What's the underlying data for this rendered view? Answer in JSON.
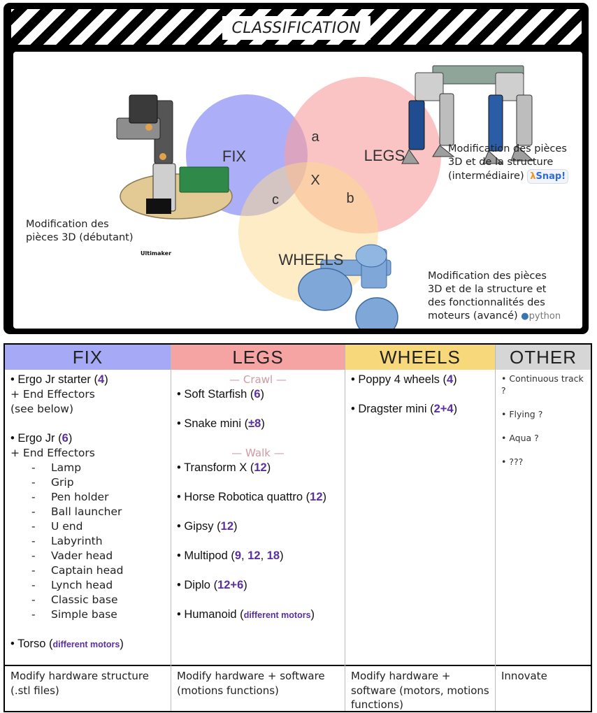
{
  "header": {
    "title": "CLASSIFICATION"
  },
  "venn": {
    "labels": {
      "fix": "FIX",
      "legs": "LEGS",
      "wheels": "WHEELS",
      "a": "a",
      "b": "b",
      "c": "c",
      "x": "X"
    },
    "colors": {
      "fix": "#8e8ff5",
      "legs": "#f7a0a0",
      "wheels": "#fbd98c"
    }
  },
  "captions": {
    "beginner": {
      "line1": "Modification des",
      "line2": "pièces 3D (débutant)",
      "logo": "Ultimaker"
    },
    "intermediate": {
      "line1": "Modification des pièces",
      "line2": "3D et de la structure",
      "line3": "(intermédiaire)",
      "logo": "Snap!"
    },
    "advanced": {
      "line1": "Modification des pièces",
      "line2": "3D et de la structure et",
      "line3": "des fonctionnalités des",
      "line4": "moteurs (avancé)",
      "logo": "python"
    }
  },
  "table": {
    "headers": {
      "fix": "FIX",
      "legs": "LEGS",
      "wheels": "WHEELS",
      "other": "OTHER"
    },
    "colors": {
      "fix": "#a5a9f6",
      "legs": "#f6a3a3",
      "wheels": "#f7d87a",
      "other": "#d6d6d6",
      "number": "#5a2fa0"
    },
    "fix": {
      "ergo_starter": {
        "name": "Ergo Jr starter",
        "count": "4"
      },
      "ergo_starter_ee": "+ End Effectors",
      "see_below": "(see below)",
      "ergo_jr": {
        "name": "Ergo Jr",
        "count": "6"
      },
      "ergo_jr_ee": "+ End Effectors",
      "effectors": [
        "Lamp",
        "Grip",
        "Pen holder",
        "Ball launcher",
        "U end",
        "Labyrinth",
        "Vader head",
        "Captain head",
        "Lynch head",
        "Classic base",
        "Simple base"
      ],
      "torso": {
        "name": "Torso",
        "note": "different motors"
      }
    },
    "legs": {
      "crawl_label": "— Crawl —",
      "walk_label": "— Walk —",
      "soft_starfish": {
        "name": "Soft Starfish",
        "count": "6"
      },
      "snake_mini": {
        "name": "Snake mini",
        "count": "±8"
      },
      "transform_x": {
        "name": "Transform X",
        "count": "12"
      },
      "horse": {
        "name": "Horse Robotica quattro",
        "count": "12"
      },
      "gipsy": {
        "name": "Gipsy",
        "count": "12"
      },
      "multipod": {
        "name": "Multipod",
        "c1": "9",
        "c2": "12",
        "c3": "18"
      },
      "diplo": {
        "name": "Diplo",
        "count": "12+6"
      },
      "humanoid": {
        "name": "Humanoid",
        "note": "different motors"
      }
    },
    "wheels": {
      "poppy": {
        "name": "Poppy 4 wheels",
        "count": "4"
      },
      "dragster": {
        "name": "Dragster mini",
        "count": "2+4"
      }
    },
    "other": {
      "continuous": "• Continuous track ?",
      "flying": "• Flying ?",
      "aqua": "• Aqua ?",
      "unknown": "• ???"
    },
    "footer": {
      "fix": "Modify hardware structure (.stl files)",
      "legs": "Modify hardware + software (motions functions)",
      "wheels": "Modify hardware + software (motors, motions functions)",
      "other": "Innovate"
    }
  }
}
